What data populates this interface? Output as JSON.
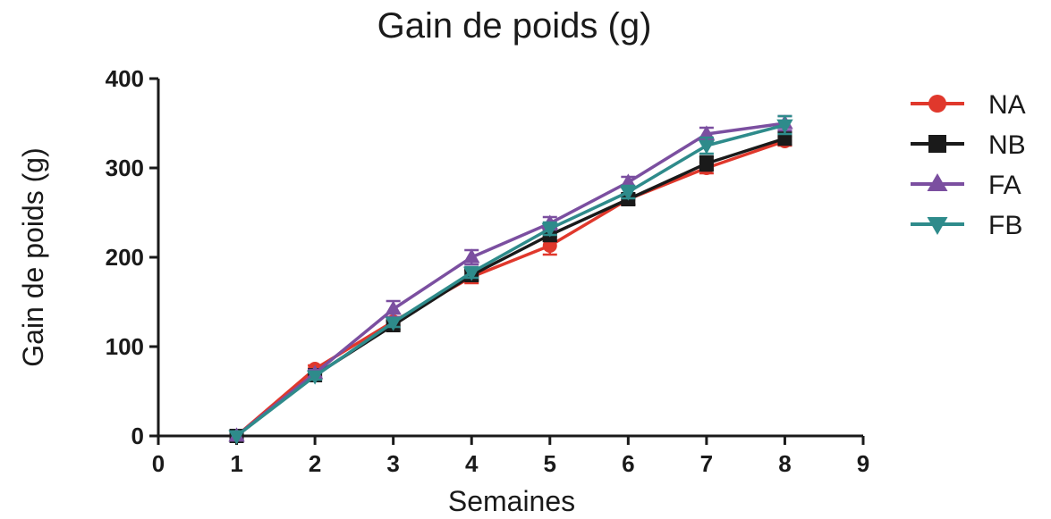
{
  "chart_data": {
    "type": "line",
    "title": "Gain de poids (g)",
    "xlabel": "Semaines",
    "ylabel": "Gain de poids (g)",
    "xlim": [
      0,
      9
    ],
    "ylim": [
      0,
      400
    ],
    "xticks": [
      0,
      1,
      2,
      3,
      4,
      5,
      6,
      7,
      8,
      9
    ],
    "yticks": [
      0,
      100,
      200,
      300,
      400
    ],
    "x": [
      1,
      2,
      3,
      4,
      5,
      6,
      7,
      8
    ],
    "grid": false,
    "legend_position": "right",
    "series": [
      {
        "name": "NA",
        "color": "#e0382c",
        "marker": "circle",
        "values": [
          0,
          75,
          128,
          178,
          213,
          265,
          300,
          330
        ],
        "errors": [
          0,
          4,
          5,
          7,
          10,
          6,
          6,
          5
        ]
      },
      {
        "name": "NB",
        "color": "#1a1a1a",
        "marker": "square",
        "values": [
          0,
          68,
          124,
          180,
          225,
          265,
          305,
          333
        ],
        "errors": [
          0,
          4,
          5,
          6,
          7,
          6,
          8,
          7
        ]
      },
      {
        "name": "FA",
        "color": "#7b4fa0",
        "marker": "triangle-up",
        "values": [
          0,
          70,
          142,
          200,
          238,
          284,
          338,
          350
        ],
        "errors": [
          0,
          4,
          9,
          8,
          7,
          6,
          7,
          8
        ]
      },
      {
        "name": "FB",
        "color": "#2e8b8b",
        "marker": "triangle-down",
        "values": [
          0,
          67,
          127,
          183,
          232,
          273,
          325,
          348
        ],
        "errors": [
          0,
          4,
          5,
          6,
          7,
          7,
          9,
          10
        ]
      }
    ]
  }
}
